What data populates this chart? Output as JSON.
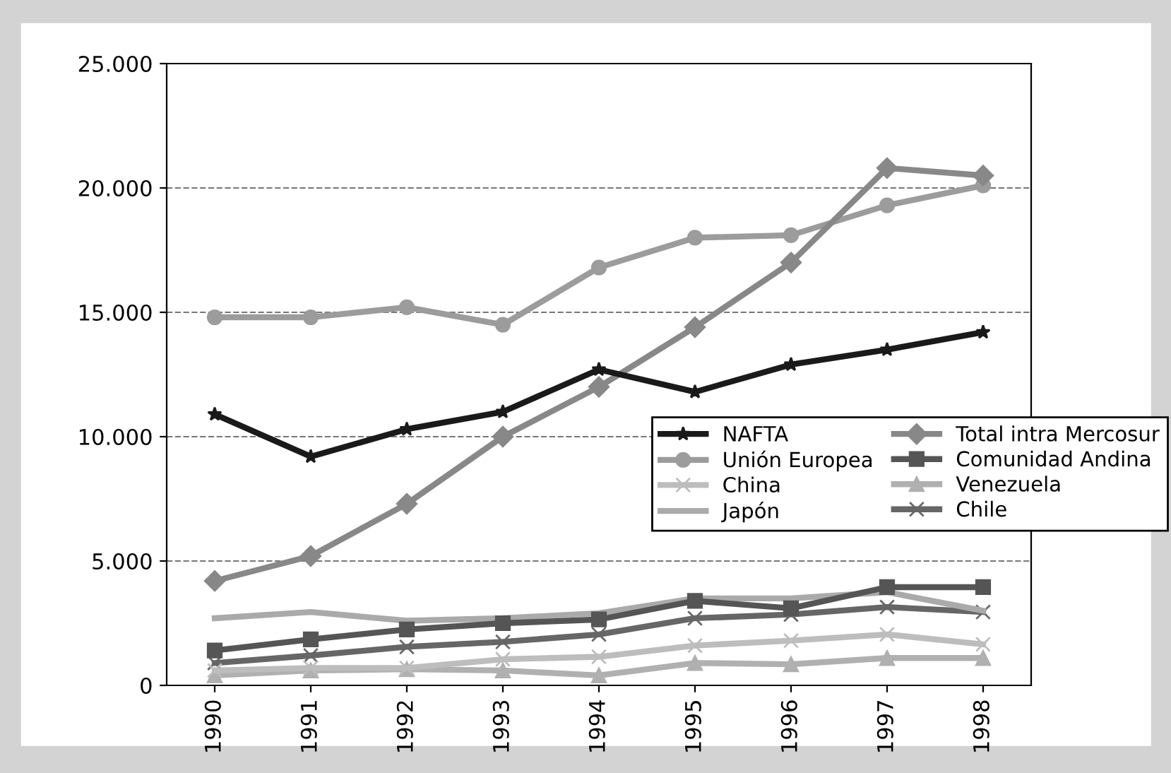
{
  "chart_data": {
    "type": "line",
    "categories": [
      "1990",
      "1991",
      "1992",
      "1993",
      "1994",
      "1995",
      "1996",
      "1997",
      "1998"
    ],
    "series": [
      {
        "name": "NAFTA",
        "color": "#1a1a1a",
        "marker": "star",
        "values": [
          10900,
          9200,
          10300,
          11000,
          12700,
          11800,
          12900,
          13500,
          14200
        ]
      },
      {
        "name": "Total intra Mercosur",
        "color": "#888888",
        "marker": "diamond",
        "values": [
          4200,
          5200,
          7300,
          10000,
          12000,
          14400,
          17000,
          20800,
          20500
        ]
      },
      {
        "name": "Unión Europea",
        "color": "#9c9c9c",
        "marker": "circle",
        "values": [
          14800,
          14800,
          15200,
          14500,
          16800,
          18000,
          18100,
          19300,
          20100
        ]
      },
      {
        "name": "Comunidad Andina",
        "color": "#555555",
        "marker": "square",
        "values": [
          1400,
          1850,
          2250,
          2500,
          2650,
          3400,
          3100,
          3950,
          3950
        ]
      },
      {
        "name": "China",
        "color": "#bdbdbd",
        "marker": "cross",
        "values": [
          600,
          700,
          700,
          1050,
          1150,
          1600,
          1800,
          2050,
          1650
        ]
      },
      {
        "name": "Venezuela",
        "color": "#b0b0b0",
        "marker": "triangle",
        "values": [
          400,
          600,
          650,
          600,
          400,
          900,
          850,
          1100,
          1100
        ]
      },
      {
        "name": "Japón",
        "color": "#aaaaaa",
        "marker": "none",
        "values": [
          2700,
          2950,
          2600,
          2700,
          2900,
          3500,
          3500,
          3750,
          3000
        ]
      },
      {
        "name": "Chile",
        "color": "#666666",
        "marker": "cross",
        "values": [
          900,
          1200,
          1550,
          1750,
          2050,
          2700,
          2850,
          3150,
          2950
        ]
      }
    ],
    "ylim": [
      0,
      25000
    ],
    "yticks": [
      {
        "value": 0,
        "label": "0"
      },
      {
        "value": 5000,
        "label": "5.000"
      },
      {
        "value": 10000,
        "label": "10.000"
      },
      {
        "value": 15000,
        "label": "15.000"
      },
      {
        "value": 20000,
        "label": "20.000"
      },
      {
        "value": 25000,
        "label": "25.000"
      }
    ],
    "grid": "y",
    "legend": "right",
    "line_style": "solid"
  }
}
